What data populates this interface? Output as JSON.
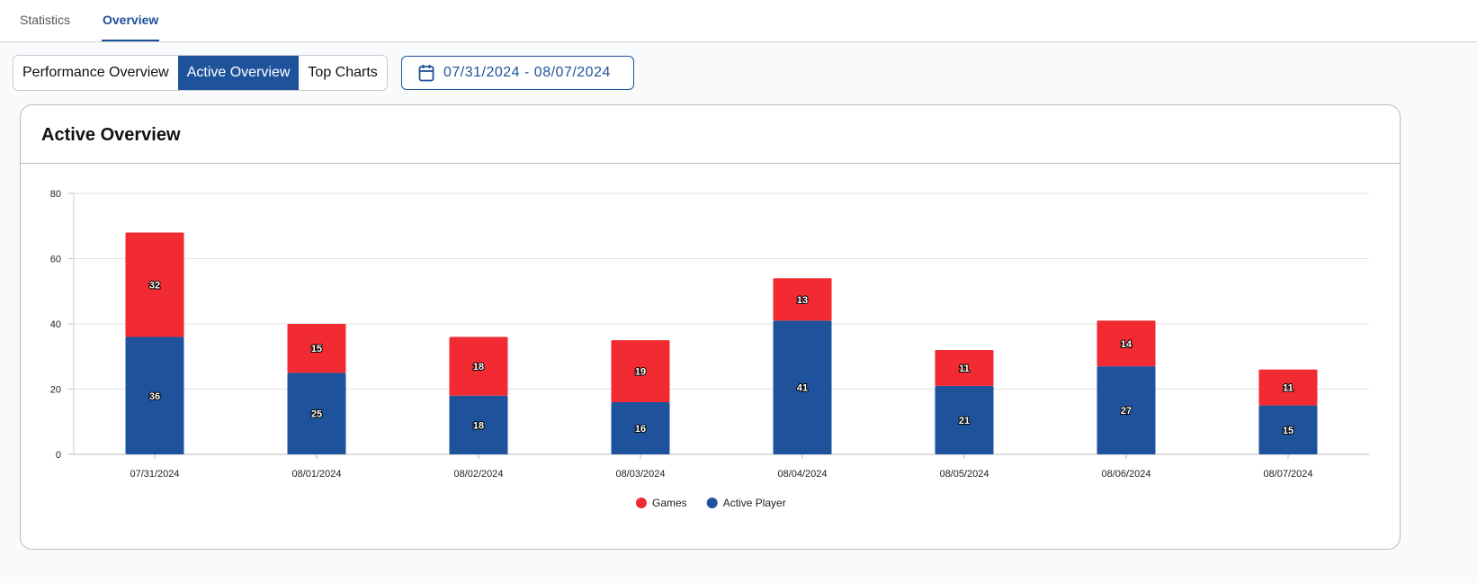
{
  "tabs": [
    {
      "label": "Statistics"
    },
    {
      "label": "Overview",
      "active": true
    }
  ],
  "segments": [
    {
      "label": "Performance Overview"
    },
    {
      "label": "Active Overview",
      "active": true
    },
    {
      "label": "Top Charts"
    }
  ],
  "date_range": "07/31/2024 - 08/07/2024",
  "card_title": "Active Overview",
  "colors": {
    "accent": "#1e539c",
    "games": "#f22a31",
    "active_player": "#1e539c"
  },
  "chart_data": {
    "type": "bar",
    "stacked": true,
    "categories": [
      "07/31/2024",
      "08/01/2024",
      "08/02/2024",
      "08/03/2024",
      "08/04/2024",
      "08/05/2024",
      "08/06/2024",
      "08/07/2024"
    ],
    "series": [
      {
        "name": "Active Player",
        "values": [
          36,
          25,
          18,
          16,
          41,
          21,
          27,
          15
        ],
        "color": "#1e539c"
      },
      {
        "name": "Games",
        "values": [
          32,
          15,
          18,
          19,
          13,
          11,
          14,
          11
        ],
        "color": "#f22a31"
      }
    ],
    "ylim": [
      0,
      80
    ],
    "yticks": [
      0,
      20,
      40,
      60,
      80
    ],
    "grid": true,
    "legend": "bottom",
    "legend_order": [
      "Games",
      "Active Player"
    ]
  }
}
